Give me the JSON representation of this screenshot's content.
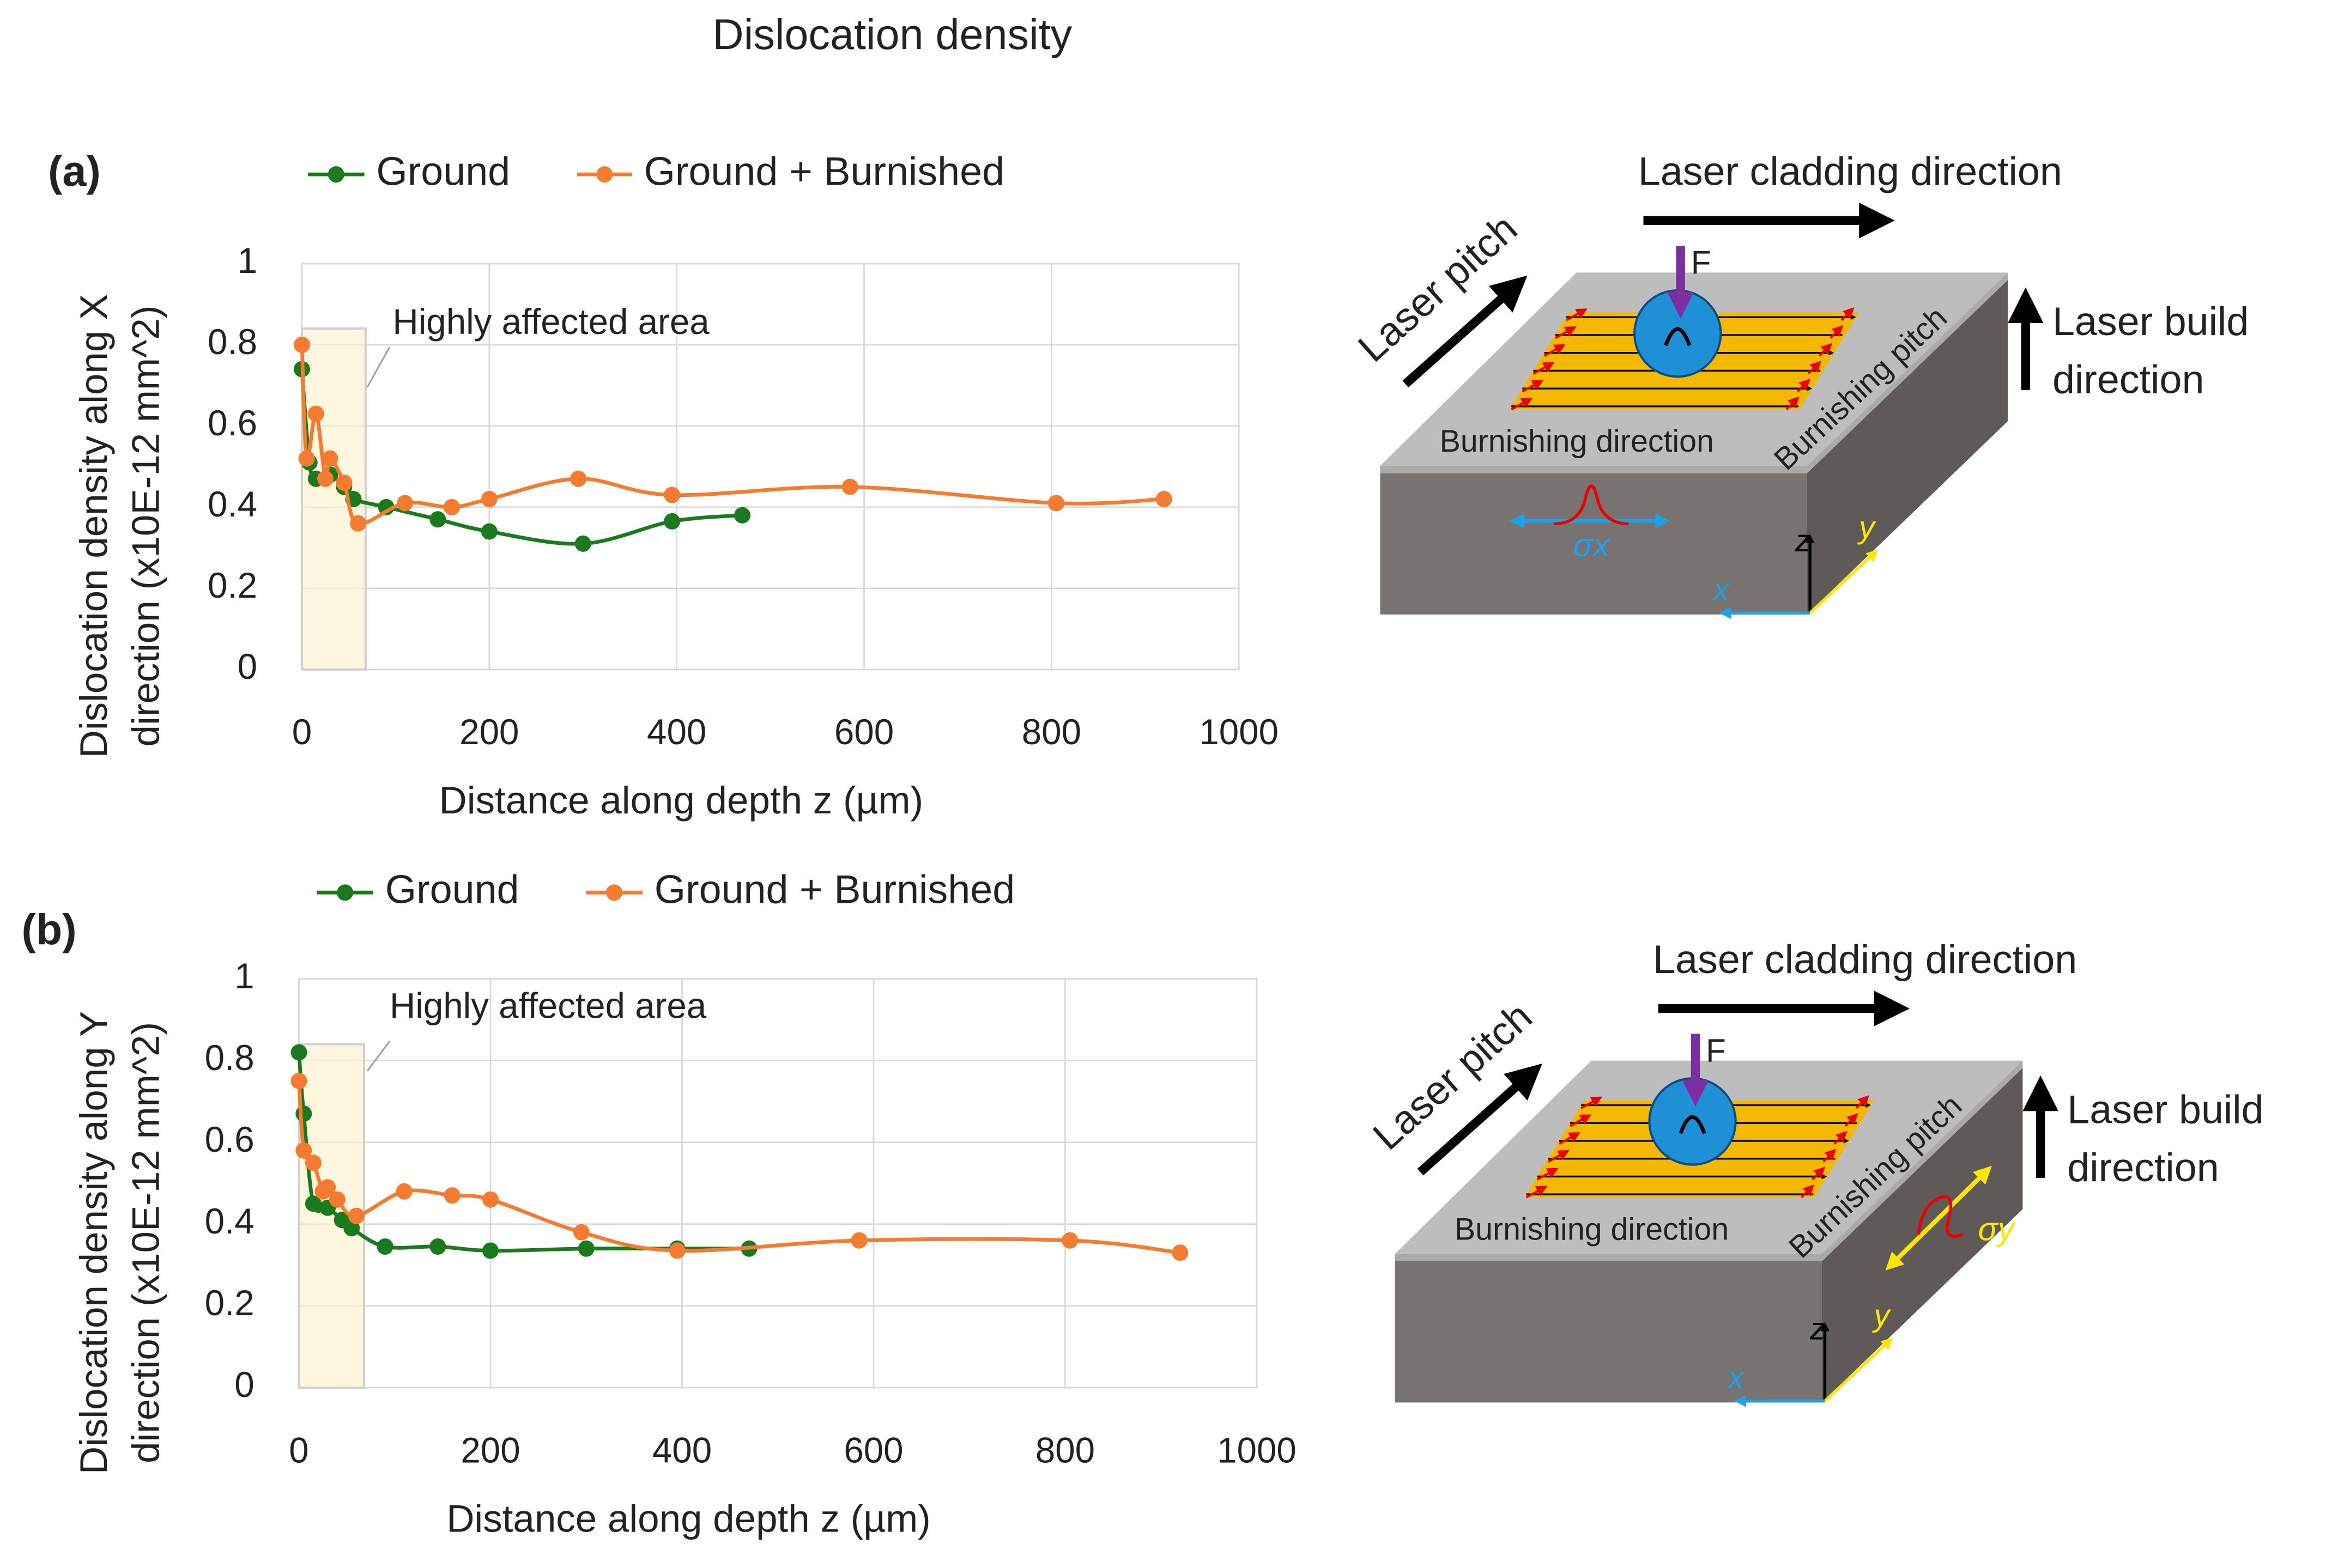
{
  "title": "Dislocation density",
  "chart_data": [
    {
      "type": "line",
      "panel": "(a)",
      "x_label": "Distance along depth z (µm)",
      "y_label": [
        "Dislocation density along X",
        "direction (x10E-12 mm^2)"
      ],
      "xlim": [
        0,
        1000
      ],
      "xticks": [
        0,
        200,
        400,
        600,
        800,
        1000
      ],
      "ylim": [
        0,
        1
      ],
      "yticks": [
        0,
        0.2,
        0.4,
        0.6,
        0.8,
        1
      ],
      "grid": true,
      "legend": "top",
      "annotation": {
        "text": "Highly affected area",
        "xlim": [
          0,
          68
        ],
        "ylim": [
          0,
          0.84
        ]
      },
      "series": [
        {
          "name": "Ground",
          "color": "#1b7a1e",
          "x": [
            0,
            8,
            15,
            30,
            45,
            55,
            90,
            145,
            200,
            300,
            395,
            470
          ],
          "values": [
            0.74,
            0.51,
            0.47,
            0.48,
            0.45,
            0.42,
            0.4,
            0.37,
            0.34,
            0.31,
            0.365,
            0.38
          ]
        },
        {
          "name": "Ground + Burnished",
          "color": "#f47c30",
          "x": [
            0,
            5,
            15,
            25,
            30,
            45,
            60,
            110,
            160,
            200,
            295,
            395,
            585,
            805,
            920
          ],
          "values": [
            0.8,
            0.52,
            0.63,
            0.47,
            0.52,
            0.46,
            0.36,
            0.41,
            0.4,
            0.42,
            0.47,
            0.43,
            0.45,
            0.41,
            0.42
          ]
        }
      ]
    },
    {
      "type": "line",
      "panel": "(b)",
      "x_label": "Distance along depth z (µm)",
      "y_label": [
        "Dislocation density along Y",
        "direction (x10E-12 mm^2)"
      ],
      "xlim": [
        0,
        1000
      ],
      "xticks": [
        0,
        200,
        400,
        600,
        800,
        1000
      ],
      "ylim": [
        0,
        1
      ],
      "yticks": [
        0,
        0.2,
        0.4,
        0.6,
        0.8,
        1
      ],
      "grid": true,
      "legend": "top",
      "annotation": {
        "text": "Highly affected area",
        "xlim": [
          0,
          68
        ],
        "ylim": [
          0,
          0.84
        ]
      },
      "series": [
        {
          "name": "Ground",
          "color": "#1b7a1e",
          "x": [
            0,
            5,
            15,
            30,
            45,
            55,
            90,
            145,
            200,
            300,
            395,
            470
          ],
          "values": [
            0.82,
            0.67,
            0.45,
            0.44,
            0.41,
            0.39,
            0.345,
            0.345,
            0.335,
            0.34,
            0.34,
            0.34
          ]
        },
        {
          "name": "Ground + Burnished",
          "color": "#f47c30",
          "x": [
            0,
            5,
            15,
            25,
            30,
            40,
            60,
            110,
            160,
            200,
            295,
            395,
            585,
            805,
            920
          ],
          "values": [
            0.75,
            0.58,
            0.55,
            0.48,
            0.49,
            0.46,
            0.42,
            0.48,
            0.47,
            0.46,
            0.38,
            0.335,
            0.36,
            0.36,
            0.33
          ]
        }
      ]
    }
  ],
  "diagrams": [
    {
      "cladding": "Laser cladding direction",
      "pitch": "Laser pitch",
      "build": [
        "Laser build",
        "direction"
      ],
      "force": "F",
      "burnishing_direction": "Burnishing direction",
      "burnishing_pitch": "Burnishing pitch",
      "stress": "σx",
      "axes": [
        "z",
        "y",
        "x"
      ]
    },
    {
      "cladding": "Laser cladding direction",
      "pitch": "Laser pitch",
      "build": [
        "Laser build",
        "direction"
      ],
      "force": "F",
      "burnishing_direction": "Burnishing direction",
      "burnishing_pitch": "Burnishing pitch",
      "stress": "σy",
      "axes": [
        "z",
        "y",
        "x"
      ]
    }
  ]
}
